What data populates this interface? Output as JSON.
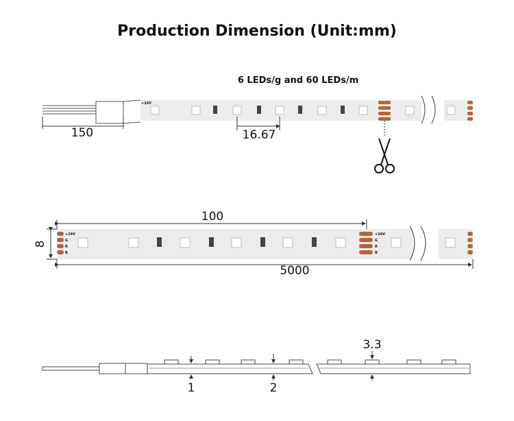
{
  "header": {
    "title": "Production Dimension (Unit:mm)"
  },
  "top_view": {
    "subtitle": "6 LEDs/g and 60 LEDs/m",
    "cable_length": "150",
    "led_pitch": "16.67",
    "pad_label": "+24V"
  },
  "strip_view": {
    "cut_length": "100",
    "total_length": "5000",
    "width": "8",
    "pad_labels": [
      "+24V",
      "G",
      "R",
      "B"
    ]
  },
  "side_view": {
    "led_height": "3.3",
    "cable_thickness": "1",
    "strip_thickness": "2"
  }
}
